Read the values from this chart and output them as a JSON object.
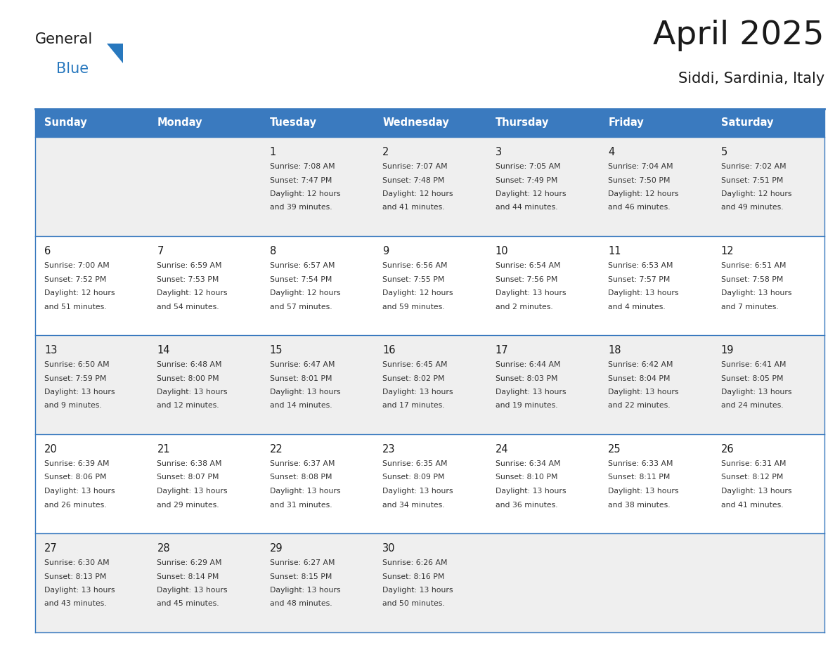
{
  "title": "April 2025",
  "subtitle": "Siddi, Sardinia, Italy",
  "header_color": "#3a7abf",
  "header_text_color": "#ffffff",
  "bg_color": "#ffffff",
  "light_row_color": "#efefef",
  "white_row_color": "#ffffff",
  "day_headers": [
    "Sunday",
    "Monday",
    "Tuesday",
    "Wednesday",
    "Thursday",
    "Friday",
    "Saturday"
  ],
  "title_color": "#1a1a1a",
  "subtitle_color": "#1a1a1a",
  "cell_text_color": "#333333",
  "day_num_color": "#1a1a1a",
  "line_color": "#3a7abf",
  "logo_general_color": "#1a1a1a",
  "logo_blue_color": "#2878be",
  "weeks": [
    [
      {
        "day": "",
        "sunrise": "",
        "sunset": "",
        "daylight": ""
      },
      {
        "day": "",
        "sunrise": "",
        "sunset": "",
        "daylight": ""
      },
      {
        "day": "1",
        "sunrise": "7:08 AM",
        "sunset": "7:47 PM",
        "daylight": "12 hours and 39 minutes."
      },
      {
        "day": "2",
        "sunrise": "7:07 AM",
        "sunset": "7:48 PM",
        "daylight": "12 hours and 41 minutes."
      },
      {
        "day": "3",
        "sunrise": "7:05 AM",
        "sunset": "7:49 PM",
        "daylight": "12 hours and 44 minutes."
      },
      {
        "day": "4",
        "sunrise": "7:04 AM",
        "sunset": "7:50 PM",
        "daylight": "12 hours and 46 minutes."
      },
      {
        "day": "5",
        "sunrise": "7:02 AM",
        "sunset": "7:51 PM",
        "daylight": "12 hours and 49 minutes."
      }
    ],
    [
      {
        "day": "6",
        "sunrise": "7:00 AM",
        "sunset": "7:52 PM",
        "daylight": "12 hours and 51 minutes."
      },
      {
        "day": "7",
        "sunrise": "6:59 AM",
        "sunset": "7:53 PM",
        "daylight": "12 hours and 54 minutes."
      },
      {
        "day": "8",
        "sunrise": "6:57 AM",
        "sunset": "7:54 PM",
        "daylight": "12 hours and 57 minutes."
      },
      {
        "day": "9",
        "sunrise": "6:56 AM",
        "sunset": "7:55 PM",
        "daylight": "12 hours and 59 minutes."
      },
      {
        "day": "10",
        "sunrise": "6:54 AM",
        "sunset": "7:56 PM",
        "daylight": "13 hours and 2 minutes."
      },
      {
        "day": "11",
        "sunrise": "6:53 AM",
        "sunset": "7:57 PM",
        "daylight": "13 hours and 4 minutes."
      },
      {
        "day": "12",
        "sunrise": "6:51 AM",
        "sunset": "7:58 PM",
        "daylight": "13 hours and 7 minutes."
      }
    ],
    [
      {
        "day": "13",
        "sunrise": "6:50 AM",
        "sunset": "7:59 PM",
        "daylight": "13 hours and 9 minutes."
      },
      {
        "day": "14",
        "sunrise": "6:48 AM",
        "sunset": "8:00 PM",
        "daylight": "13 hours and 12 minutes."
      },
      {
        "day": "15",
        "sunrise": "6:47 AM",
        "sunset": "8:01 PM",
        "daylight": "13 hours and 14 minutes."
      },
      {
        "day": "16",
        "sunrise": "6:45 AM",
        "sunset": "8:02 PM",
        "daylight": "13 hours and 17 minutes."
      },
      {
        "day": "17",
        "sunrise": "6:44 AM",
        "sunset": "8:03 PM",
        "daylight": "13 hours and 19 minutes."
      },
      {
        "day": "18",
        "sunrise": "6:42 AM",
        "sunset": "8:04 PM",
        "daylight": "13 hours and 22 minutes."
      },
      {
        "day": "19",
        "sunrise": "6:41 AM",
        "sunset": "8:05 PM",
        "daylight": "13 hours and 24 minutes."
      }
    ],
    [
      {
        "day": "20",
        "sunrise": "6:39 AM",
        "sunset": "8:06 PM",
        "daylight": "13 hours and 26 minutes."
      },
      {
        "day": "21",
        "sunrise": "6:38 AM",
        "sunset": "8:07 PM",
        "daylight": "13 hours and 29 minutes."
      },
      {
        "day": "22",
        "sunrise": "6:37 AM",
        "sunset": "8:08 PM",
        "daylight": "13 hours and 31 minutes."
      },
      {
        "day": "23",
        "sunrise": "6:35 AM",
        "sunset": "8:09 PM",
        "daylight": "13 hours and 34 minutes."
      },
      {
        "day": "24",
        "sunrise": "6:34 AM",
        "sunset": "8:10 PM",
        "daylight": "13 hours and 36 minutes."
      },
      {
        "day": "25",
        "sunrise": "6:33 AM",
        "sunset": "8:11 PM",
        "daylight": "13 hours and 38 minutes."
      },
      {
        "day": "26",
        "sunrise": "6:31 AM",
        "sunset": "8:12 PM",
        "daylight": "13 hours and 41 minutes."
      }
    ],
    [
      {
        "day": "27",
        "sunrise": "6:30 AM",
        "sunset": "8:13 PM",
        "daylight": "13 hours and 43 minutes."
      },
      {
        "day": "28",
        "sunrise": "6:29 AM",
        "sunset": "8:14 PM",
        "daylight": "13 hours and 45 minutes."
      },
      {
        "day": "29",
        "sunrise": "6:27 AM",
        "sunset": "8:15 PM",
        "daylight": "13 hours and 48 minutes."
      },
      {
        "day": "30",
        "sunrise": "6:26 AM",
        "sunset": "8:16 PM",
        "daylight": "13 hours and 50 minutes."
      },
      {
        "day": "",
        "sunrise": "",
        "sunset": "",
        "daylight": ""
      },
      {
        "day": "",
        "sunrise": "",
        "sunset": "",
        "daylight": ""
      },
      {
        "day": "",
        "sunrise": "",
        "sunset": "",
        "daylight": ""
      }
    ]
  ]
}
